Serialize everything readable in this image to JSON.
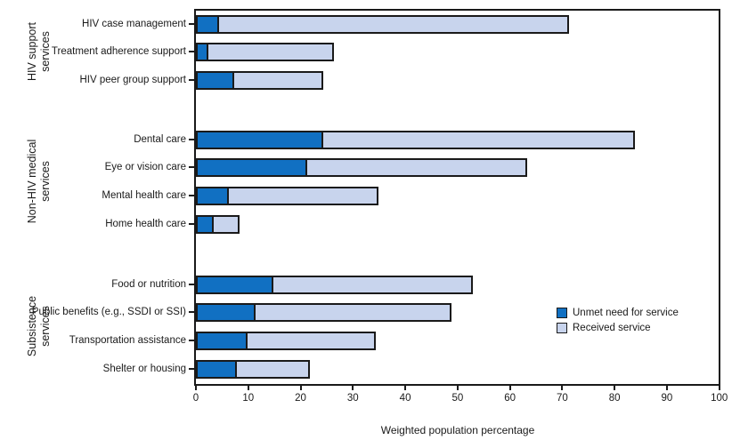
{
  "chart_data": {
    "type": "bar",
    "orientation": "horizontal",
    "stacked": true,
    "title": "",
    "xlabel": "Weighted population percentage",
    "ylabel": "",
    "xlim": [
      0,
      100
    ],
    "xticks": [
      0,
      10,
      20,
      30,
      40,
      50,
      60,
      70,
      80,
      90,
      100
    ],
    "grid": false,
    "legend_position": "middle-right",
    "series_names": [
      "Unmet need for service",
      "Received service"
    ],
    "colors": {
      "unmet": "#1170C2",
      "received": "#C8D4ED",
      "frame": "#1A1A1A"
    },
    "groups": [
      {
        "label": "HIV support services",
        "label_lines": "HIV support\nservices",
        "rows": [
          {
            "category": "HIV case management",
            "unmet": 4,
            "received": 67
          },
          {
            "category": "Treatment adherence support",
            "unmet": 2,
            "received": 24
          },
          {
            "category": "HIV peer group support",
            "unmet": 7,
            "received": 17
          }
        ]
      },
      {
        "label": "Non-HIV medical services",
        "label_lines": "Non-HIV medical\nservices",
        "rows": [
          {
            "category": "Dental care",
            "unmet": 24,
            "received": 59.5
          },
          {
            "category": "Eye or vision care",
            "unmet": 21,
            "received": 42
          },
          {
            "category": "Mental health care",
            "unmet": 6,
            "received": 28.5
          },
          {
            "category": "Home health care",
            "unmet": 3,
            "received": 5
          }
        ]
      },
      {
        "label": "Subsistence services",
        "label_lines": "Subsistence\nservices",
        "rows": [
          {
            "category": "Food or nutrition",
            "unmet": 14.5,
            "received": 38
          },
          {
            "category": "Public benefits (e.g., SSDI or SSI)",
            "unmet": 11,
            "received": 37.5
          },
          {
            "category": "Transportation assistance",
            "unmet": 9.5,
            "received": 24.5
          },
          {
            "category": "Shelter or housing",
            "unmet": 7.5,
            "received": 14
          }
        ]
      }
    ],
    "legend": {
      "items": [
        {
          "label": "Unmet need for service",
          "color": "#1170C2"
        },
        {
          "label": "Received service",
          "color": "#C8D4ED"
        }
      ]
    }
  }
}
